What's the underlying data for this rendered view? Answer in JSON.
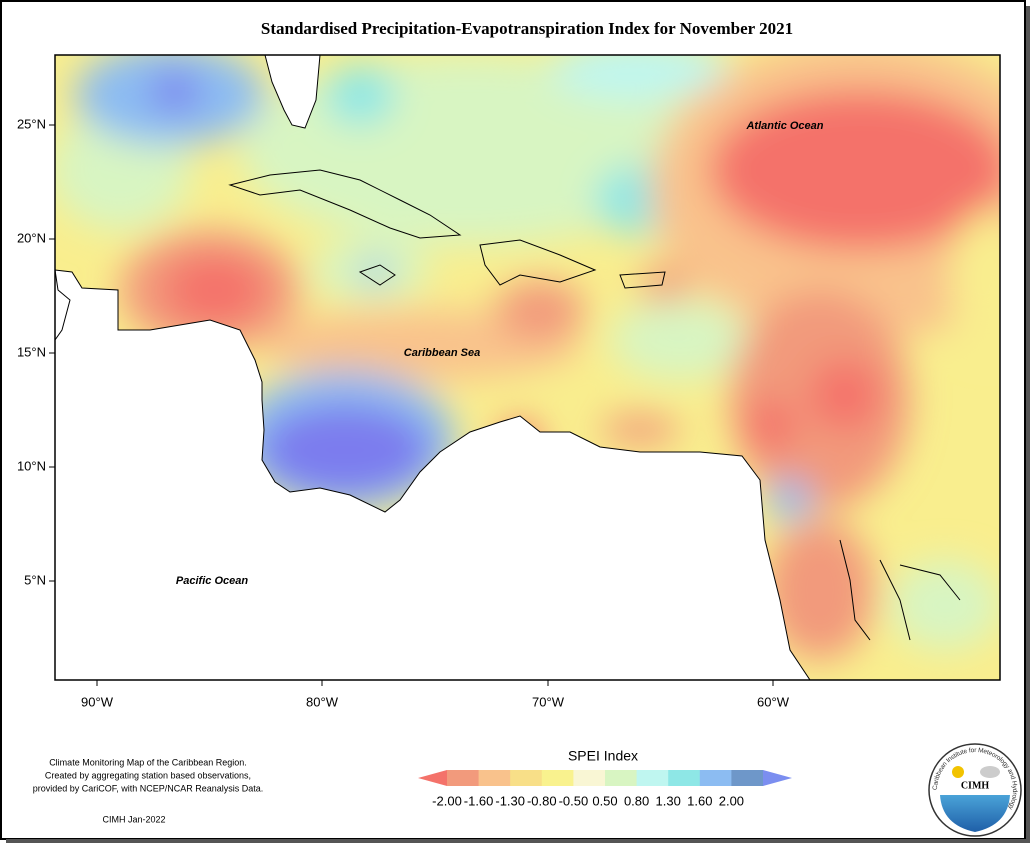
{
  "title": "Standardised Precipitation-Evapotranspiration Index for November 2021",
  "map": {
    "places": [
      "Atlantic Ocean",
      "Caribbean Sea",
      "Pacific Ocean"
    ],
    "lat_ticks": [
      "25°N",
      "20°N",
      "15°N",
      "10°N",
      "5°N"
    ],
    "lon_ticks": [
      "90°W",
      "80°W",
      "70°W",
      "60°W"
    ]
  },
  "legend": {
    "title": "SPEI Index",
    "ticks": [
      "-2.00",
      "-1.60",
      "-1.30",
      "-0.80",
      "-0.50",
      "0.50",
      "0.80",
      "1.30",
      "1.60",
      "2.00"
    ],
    "colors": [
      "#f4726a",
      "#f29a7c",
      "#f9c28c",
      "#f8df88",
      "#f9f28e",
      "#f9f6d4",
      "#d8f5c2",
      "#bff6f0",
      "#8ee7e6",
      "#8cbcf2",
      "#6e97c9",
      "#7b8ef0"
    ]
  },
  "notes": {
    "description": [
      "Climate Monitoring Map of the Caribbean Region.",
      "Created by aggregating station based observations,",
      "provided by CariCOF, with NCEP/NCAR Reanalysis Data."
    ],
    "credit": "CIMH Jan-2022"
  },
  "logo": {
    "name": "CIMH",
    "ring": "Caribbean Institute for Meteorology and Hydrology"
  }
}
